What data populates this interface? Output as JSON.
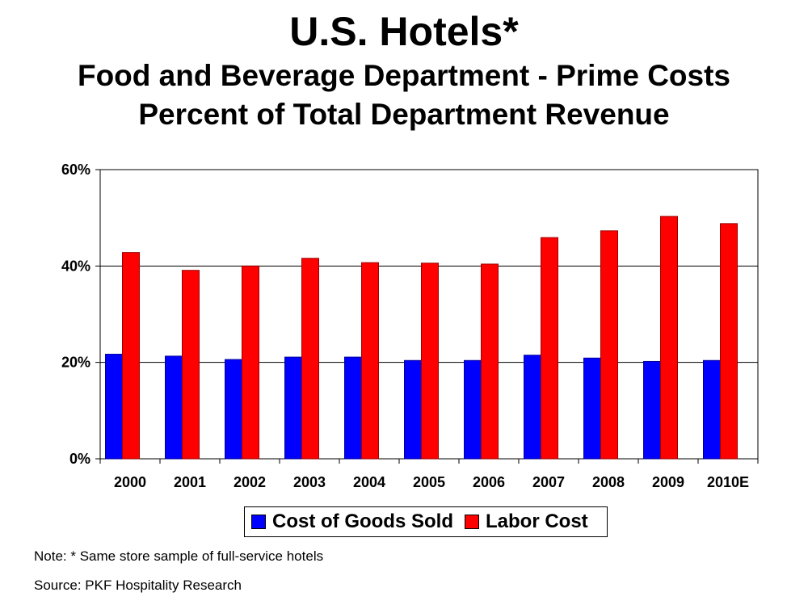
{
  "chart_data": {
    "type": "bar",
    "title": "U.S. Hotels*",
    "subtitle_lines": [
      "Food and Beverage Department - Prime Costs",
      "Percent of Total Department Revenue"
    ],
    "categories": [
      "2000",
      "2001",
      "2002",
      "2003",
      "2004",
      "2005",
      "2006",
      "2007",
      "2008",
      "2009",
      "2010E"
    ],
    "series": [
      {
        "name": "Cost of Goods Sold",
        "color": "#0000ff",
        "values": [
          21.7,
          21.3,
          20.6,
          21.1,
          21.1,
          20.4,
          20.4,
          21.5,
          20.9,
          20.2,
          20.4
        ]
      },
      {
        "name": "Labor Cost",
        "color": "#ff0000",
        "values": [
          42.8,
          39.1,
          40.0,
          41.6,
          40.7,
          40.6,
          40.4,
          45.9,
          47.3,
          50.3,
          48.8
        ]
      }
    ],
    "ylim": [
      0,
      60
    ],
    "yticks": [
      "0%",
      "20%",
      "40%",
      "60%"
    ],
    "ytick_values": [
      0,
      20,
      40,
      60
    ],
    "grid": true,
    "legend_position": "bottom"
  },
  "notes": {
    "note": "Note: * Same store sample of full-service hotels",
    "source": "Source: PKF Hospitality Research"
  }
}
